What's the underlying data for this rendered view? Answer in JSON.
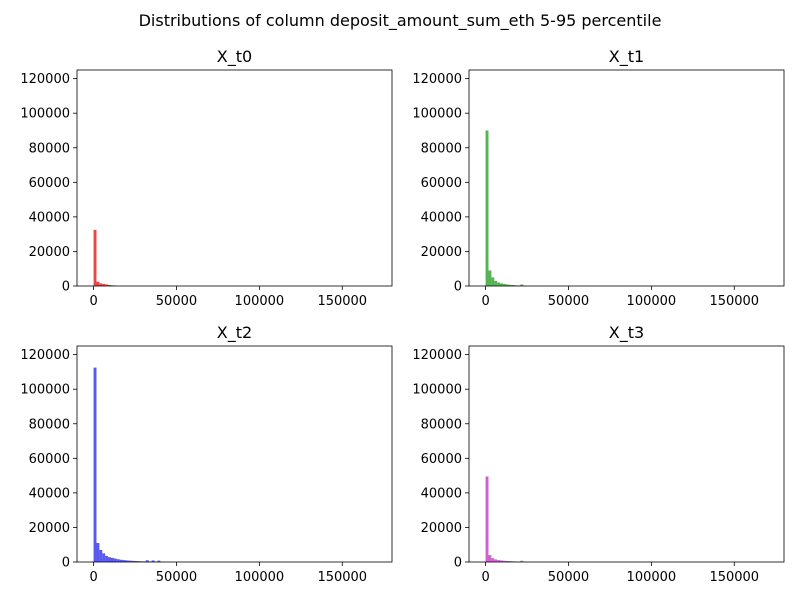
{
  "figure": {
    "title": "Distributions of column deposit_amount_sum_eth 5-95 percentile"
  },
  "chart_data": [
    {
      "type": "bar",
      "title": "X_t0",
      "color": "#e31a1c",
      "xlim": [
        -10000,
        180000
      ],
      "ylim": [
        0,
        125000
      ],
      "xticks": [
        0,
        50000,
        100000,
        150000
      ],
      "yticks": [
        0,
        20000,
        40000,
        60000,
        80000,
        100000,
        120000
      ],
      "bin_width": 1750,
      "bins_start": [
        0,
        1750,
        3500,
        5250,
        7000,
        8750,
        10500,
        12250
      ],
      "values": [
        32500,
        2500,
        1500,
        1200,
        900,
        600,
        400,
        200
      ]
    },
    {
      "type": "bar",
      "title": "X_t1",
      "color": "#2ca02c",
      "xlim": [
        -10000,
        180000
      ],
      "ylim": [
        0,
        125000
      ],
      "xticks": [
        0,
        50000,
        100000,
        150000
      ],
      "yticks": [
        0,
        20000,
        40000,
        60000,
        80000,
        100000,
        120000
      ],
      "bin_width": 1750,
      "bins_start": [
        0,
        1750,
        3500,
        5250,
        7000,
        8750,
        10500,
        12250,
        14000,
        15750,
        17500,
        19250,
        21000,
        22750
      ],
      "values": [
        90000,
        9000,
        5000,
        3000,
        2000,
        1500,
        1200,
        900,
        700,
        600,
        400,
        300,
        900,
        200
      ]
    },
    {
      "type": "bar",
      "title": "X_t2",
      "color": "#2f2fe8",
      "xlim": [
        -10000,
        180000
      ],
      "ylim": [
        0,
        125000
      ],
      "xticks": [
        0,
        50000,
        100000,
        150000
      ],
      "yticks": [
        0,
        20000,
        40000,
        60000,
        80000,
        100000,
        120000
      ],
      "bin_width": 1750,
      "bins_start": [
        0,
        1750,
        3500,
        5250,
        7000,
        8750,
        10500,
        12250,
        14000,
        15750,
        17500,
        19250,
        21000,
        22750,
        24500,
        26250,
        28000,
        29750,
        31500,
        33250,
        35000,
        36750,
        38500,
        40250
      ],
      "values": [
        112500,
        11000,
        7000,
        5000,
        3500,
        2800,
        2400,
        2000,
        1600,
        1300,
        1100,
        900,
        800,
        700,
        600,
        500,
        400,
        350,
        1000,
        300,
        900,
        250,
        800,
        200
      ]
    },
    {
      "type": "bar",
      "title": "X_t3",
      "color": "#c43ac4",
      "xlim": [
        -10000,
        180000
      ],
      "ylim": [
        0,
        125000
      ],
      "xticks": [
        0,
        50000,
        100000,
        150000
      ],
      "yticks": [
        0,
        20000,
        40000,
        60000,
        80000,
        100000,
        120000
      ],
      "bin_width": 1750,
      "bins_start": [
        0,
        1750,
        3500,
        5250,
        7000,
        8750,
        10500,
        12250,
        14000,
        15750,
        17500,
        19250,
        21000,
        22750
      ],
      "values": [
        49500,
        4000,
        2200,
        1500,
        1100,
        900,
        700,
        600,
        500,
        400,
        300,
        200,
        700,
        150
      ]
    }
  ]
}
